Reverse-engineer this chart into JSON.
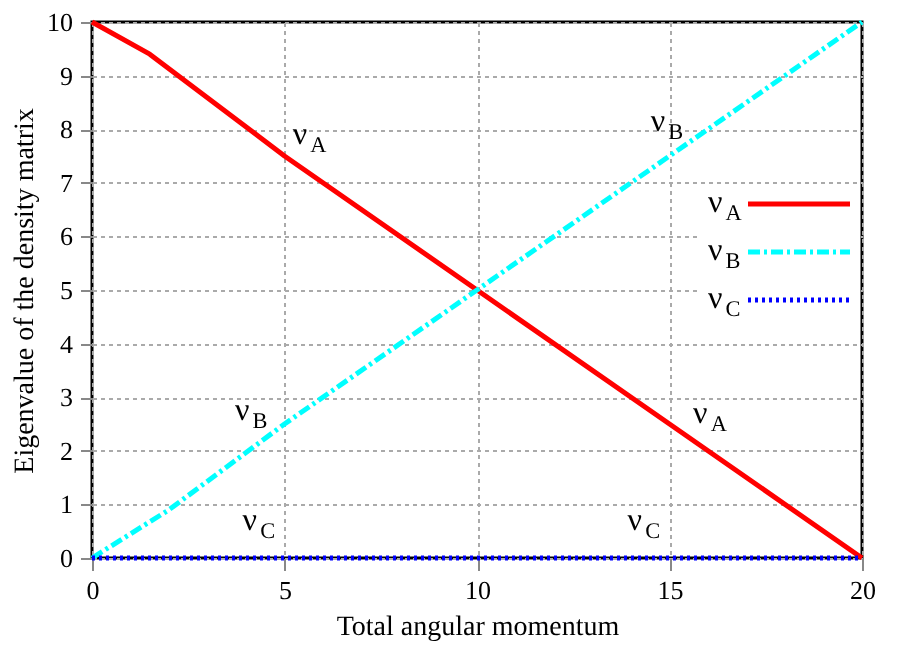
{
  "chart_data": {
    "type": "line",
    "xlabel": "Total angular momentum",
    "ylabel": "Eigenvalue of the density matrix",
    "xlim": [
      0,
      20
    ],
    "ylim": [
      0,
      10
    ],
    "xticks": [
      0,
      5,
      10,
      15,
      20
    ],
    "yticks": [
      0,
      1,
      2,
      3,
      4,
      5,
      6,
      7,
      8,
      9,
      10
    ],
    "grid": true,
    "legend": "right",
    "marker": "none",
    "series": [
      {
        "name": "ν$_{A}$",
        "color": "#ff0000",
        "line_style": "solid",
        "x": [
          0,
          1.5,
          5,
          10,
          15,
          20
        ],
        "values": [
          10,
          9.4,
          7.5,
          5,
          2.5,
          0
        ]
      },
      {
        "name": "ν$_{B}$",
        "color": "#00ffff",
        "line_style": "dashdot",
        "x": [
          0,
          2,
          5,
          10,
          15,
          20
        ],
        "values": [
          0,
          0.9,
          2.5,
          5,
          7.5,
          10
        ]
      },
      {
        "name": "ν$_{C}$",
        "color": "#0000ff",
        "line_style": "dotted",
        "x": [
          0,
          5,
          10,
          15,
          20
        ],
        "values": [
          0,
          0,
          0,
          0,
          0
        ]
      }
    ],
    "annotations": [
      {
        "text": "ν$_{A}$",
        "x": 5.6,
        "y": 7.2
      },
      {
        "text": "ν$_{B}$",
        "x": 14.9,
        "y": 7.45
      },
      {
        "text": "ν$_{B}$",
        "x": 4.1,
        "y": 2.05
      },
      {
        "text": "ν$_{A}$",
        "x": 16.0,
        "y": 2.0
      },
      {
        "text": "ν$_{C}$",
        "x": 4.3,
        "y": 0
      },
      {
        "text": "ν$_{C}$",
        "x": 14.3,
        "y": 0
      }
    ]
  }
}
